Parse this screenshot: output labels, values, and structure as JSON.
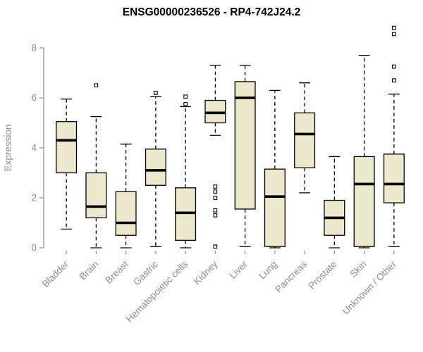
{
  "chart_data": {
    "type": "boxplot",
    "title": "ENSG00000236526 - RP4-742J24.2",
    "xlabel": "",
    "ylabel": "Expression",
    "ylim": [
      0,
      8.95
    ],
    "yticks": [
      0,
      2,
      4,
      6,
      8
    ],
    "grid": false,
    "legend": false,
    "colors": {
      "box_fill": "#EDE7CD",
      "box_stroke": "#000000",
      "median": "#000000",
      "axis": "#8D8D8D",
      "title": "#000000",
      "background": "#FFFFFF"
    },
    "categories": [
      "Bladder",
      "Brain",
      "Breast",
      "Gastric",
      "Hematopoietic cells",
      "Kidney",
      "Liver",
      "Lung",
      "Pancreas",
      "Prostate",
      "Skin",
      "Unknown / Other"
    ],
    "boxes": [
      {
        "category": "Bladder",
        "low": 0.75,
        "q1": 3.0,
        "median": 4.3,
        "q3": 5.05,
        "high": 5.95,
        "outliers": []
      },
      {
        "category": "Brain",
        "low": 0.0,
        "q1": 1.2,
        "median": 1.65,
        "q3": 3.0,
        "high": 5.25,
        "outliers": [
          6.5
        ]
      },
      {
        "category": "Breast",
        "low": 0.0,
        "q1": 0.5,
        "median": 1.0,
        "q3": 2.25,
        "high": 4.15,
        "outliers": []
      },
      {
        "category": "Gastric",
        "low": 0.05,
        "q1": 2.5,
        "median": 3.1,
        "q3": 3.95,
        "high": 6.05,
        "outliers": [
          6.2
        ]
      },
      {
        "category": "Hematopoietic cells",
        "low": 0.0,
        "q1": 0.3,
        "median": 1.4,
        "q3": 2.4,
        "high": 5.65,
        "outliers": [
          5.75,
          6.05
        ]
      },
      {
        "category": "Kidney",
        "low": 4.5,
        "q1": 5.0,
        "median": 5.4,
        "q3": 5.9,
        "high": 7.3,
        "outliers": [
          2.45,
          2.25,
          2.0,
          1.5,
          1.3,
          0.05
        ]
      },
      {
        "category": "Liver",
        "low": 0.05,
        "q1": 1.55,
        "median": 6.0,
        "q3": 6.65,
        "high": 7.3,
        "outliers": []
      },
      {
        "category": "Lung",
        "low": 0.0,
        "q1": 0.05,
        "median": 2.05,
        "q3": 3.15,
        "high": 6.3,
        "outliers": []
      },
      {
        "category": "Pancreas",
        "low": 2.2,
        "q1": 3.2,
        "median": 4.55,
        "q3": 5.4,
        "high": 6.6,
        "outliers": []
      },
      {
        "category": "Prostate",
        "low": 0.0,
        "q1": 0.5,
        "median": 1.2,
        "q3": 1.9,
        "high": 3.65,
        "outliers": []
      },
      {
        "category": "Skin",
        "low": 0.0,
        "q1": 0.05,
        "median": 2.55,
        "q3": 3.65,
        "high": 7.7,
        "outliers": []
      },
      {
        "category": "Unknown / Other",
        "low": 0.05,
        "q1": 1.8,
        "median": 2.55,
        "q3": 3.75,
        "high": 6.15,
        "outliers": [
          6.7,
          7.25,
          8.55,
          8.8
        ]
      }
    ]
  }
}
